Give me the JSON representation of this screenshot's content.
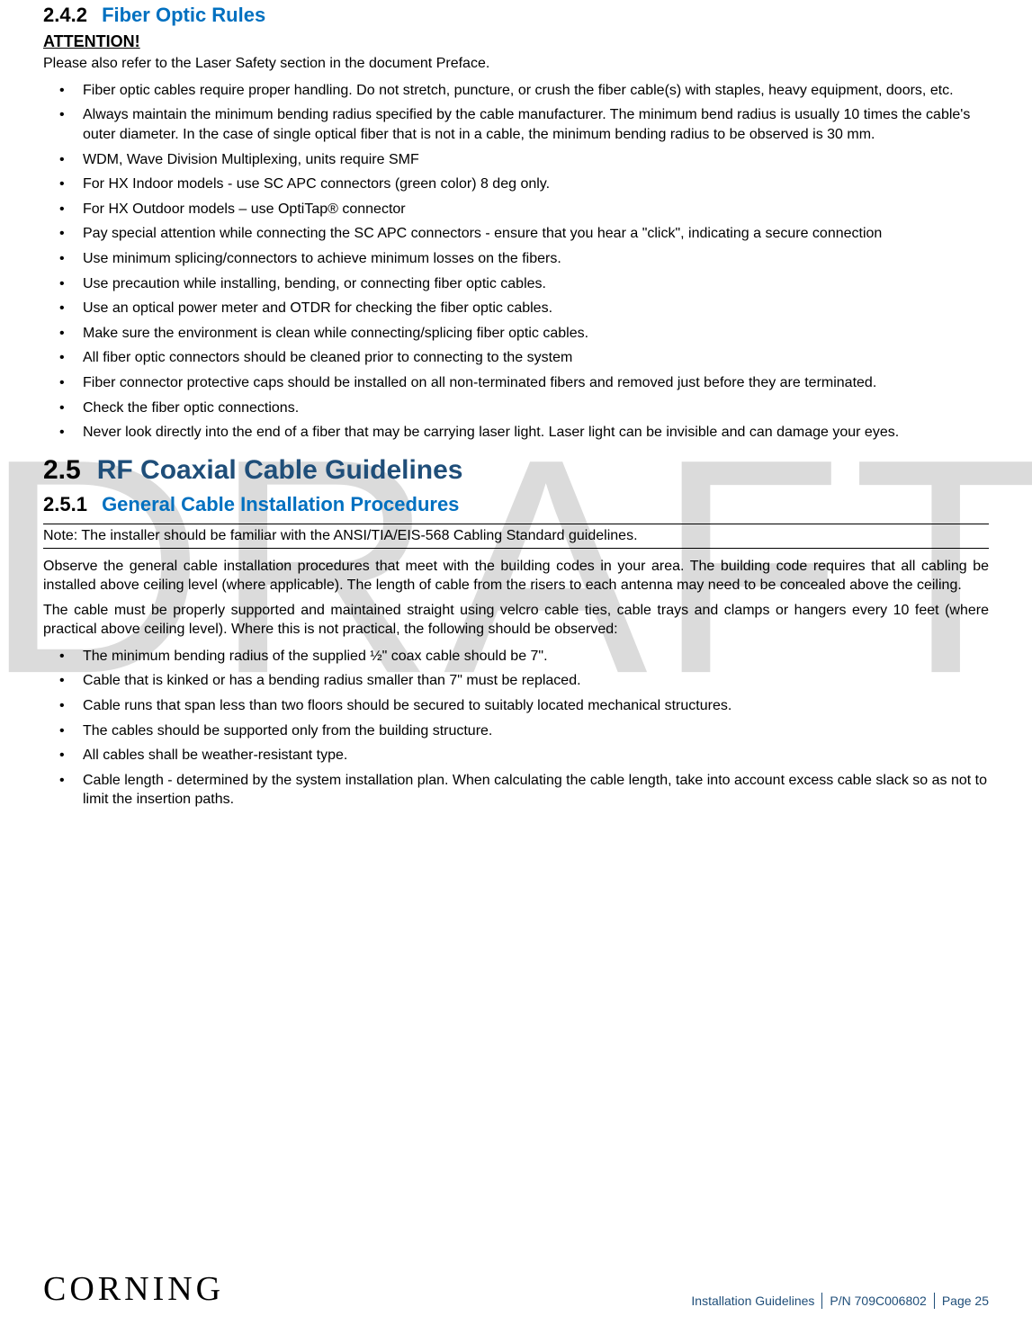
{
  "watermark": "DRAFT",
  "section_242": {
    "number": "2.4.2",
    "title": "Fiber Optic Rules",
    "attention": "ATTENTION!",
    "intro": "Please also refer to the Laser Safety section in the document Preface.",
    "bullets": [
      "Fiber optic cables require proper handling. Do not stretch, puncture, or crush the fiber cable(s) with staples, heavy equipment, doors, etc.",
      "Always maintain the minimum bending radius specified by the cable manufacturer. The minimum bend radius is usually 10 times the cable's outer diameter. In the case of single optical fiber that is not in a cable, the minimum bending radius to be observed is 30 mm.",
      "WDM, Wave Division Multiplexing, units require SMF",
      "For HX Indoor models - use SC APC connectors (green color) 8 deg only.",
      "For HX Outdoor models – use OptiTap® connector",
      "Pay special attention while connecting the SC APC connectors - ensure that you hear a \"click\", indicating a secure connection",
      "Use minimum splicing/connectors to achieve minimum losses on the fibers.",
      "Use precaution while installing, bending, or connecting fiber optic cables.",
      "Use an optical power meter and OTDR for checking the fiber optic cables.",
      "Make sure the environment is clean while connecting/splicing fiber optic cables.",
      "All fiber optic connectors should be cleaned prior to connecting to the system",
      "Fiber connector protective caps should be installed on all non-terminated fibers and removed just before they are terminated.",
      "Check the fiber optic connections.",
      "Never look directly into the end of a fiber that may be carrying laser light. Laser light can be invisible and can damage your eyes."
    ]
  },
  "section_25": {
    "number": "2.5",
    "title": "RF Coaxial Cable Guidelines"
  },
  "section_251": {
    "number": "2.5.1",
    "title": "General Cable Installation Procedures",
    "note": "Note: The installer should be familiar with the ANSI/TIA/EIS-568 Cabling Standard guidelines.",
    "para1": "Observe the general cable installation procedures that meet with the building codes in your area. The building code requires that all cabling be installed above ceiling level (where applicable). The length of cable from the risers to each antenna may need to be concealed above the ceiling.",
    "para2": "The cable must be properly supported and maintained straight using velcro cable ties, cable trays and clamps or hangers every 10 feet (where practical above ceiling level). Where this is not practical, the following should be observed:",
    "bullets": [
      "The minimum bending radius of the supplied ½\" coax cable should be 7\".",
      "Cable that is kinked or has a bending radius smaller than 7\" must be replaced.",
      "Cable runs that span less than two floors should be secured to suitably located mechanical structures.",
      "The cables should be supported only from the building structure.",
      "All cables shall be weather-resistant type.",
      "Cable length - determined by the system installation plan. When calculating the cable length, take into account excess cable slack so as not to limit the insertion paths."
    ]
  },
  "footer": {
    "brand": "CORNING",
    "section": "Installation Guidelines",
    "pn": "P/N 709C006802",
    "page": "Page 25"
  },
  "colors": {
    "heading_blue": "#0070c0",
    "dark_blue": "#1f4e79",
    "watermark_gray": "#bfbfbf",
    "text": "#000000",
    "background": "#ffffff"
  },
  "typography": {
    "body_fontsize": 16,
    "h3_fontsize": 22,
    "h2_fontsize": 30,
    "watermark_fontsize": 340,
    "footer_brand_fontsize": 38,
    "footer_right_fontsize": 14
  }
}
